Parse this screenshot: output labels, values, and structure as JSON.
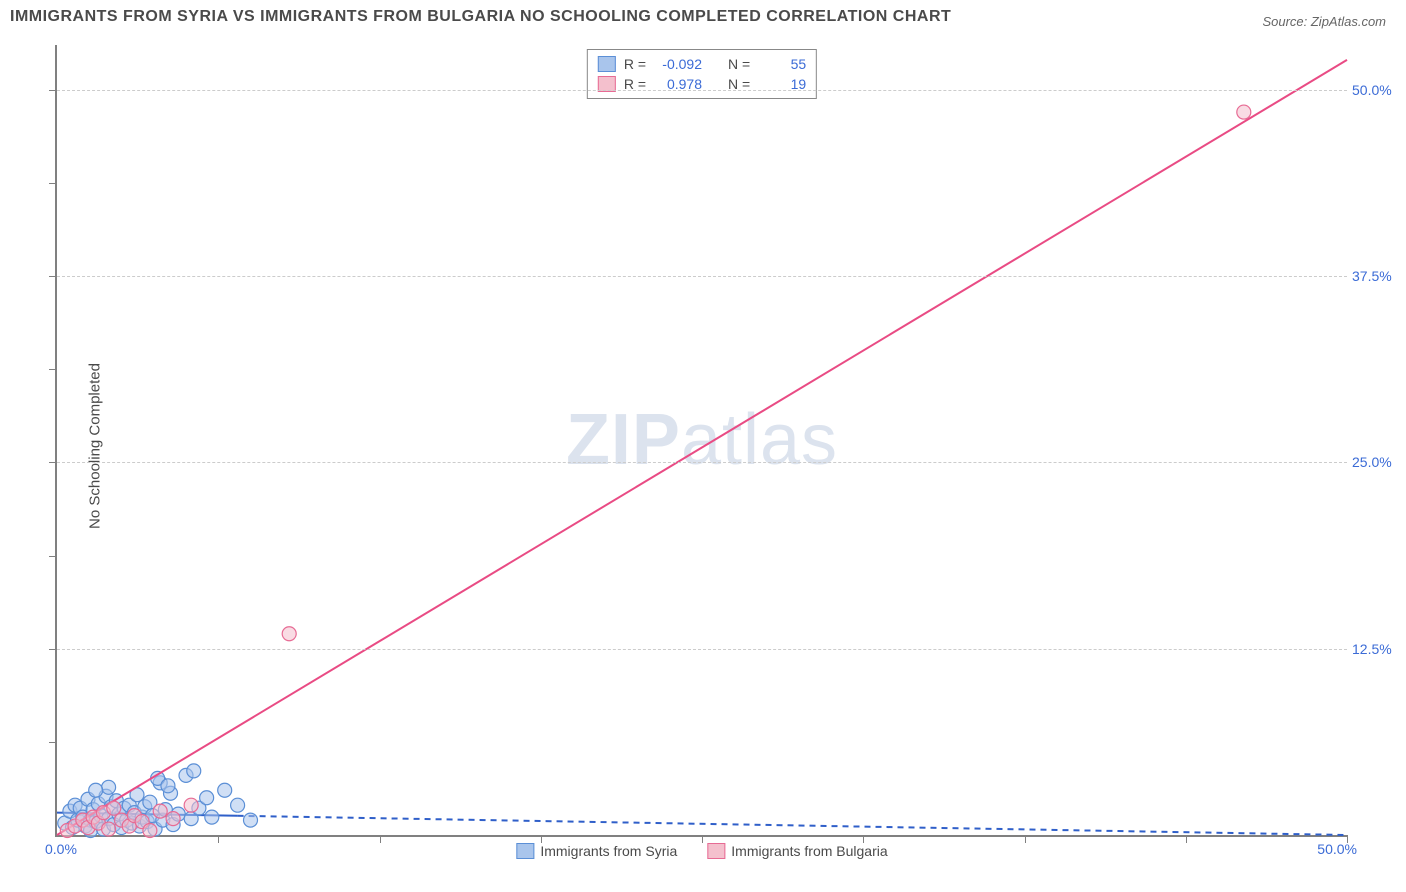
{
  "title": "IMMIGRANTS FROM SYRIA VS IMMIGRANTS FROM BULGARIA NO SCHOOLING COMPLETED CORRELATION CHART",
  "source": "Source: ZipAtlas.com",
  "ylabel": "No Schooling Completed",
  "watermark_bold": "ZIP",
  "watermark_light": "atlas",
  "chart": {
    "type": "scatter",
    "xlim": [
      0,
      50
    ],
    "ylim": [
      0,
      53
    ],
    "x_origin_label": "0.0%",
    "x_max_label": "50.0%",
    "y_ticks": [
      12.5,
      25.0,
      37.5,
      50.0
    ],
    "y_tick_labels": [
      "12.5%",
      "25.0%",
      "37.5%",
      "50.0%"
    ],
    "x_minor_ticks": [
      6.25,
      12.5,
      18.75,
      25,
      31.25,
      37.5,
      43.75,
      50
    ],
    "y_minor_ticks": [
      6.25,
      12.5,
      18.75,
      25,
      31.25,
      37.5,
      43.75,
      50
    ],
    "grid_color": "#cccccc",
    "axis_color": "#808080",
    "background": "#ffffff",
    "marker_radius": 7,
    "marker_stroke_width": 1.2,
    "series": [
      {
        "name": "Immigrants from Syria",
        "fill": "#a9c5ec",
        "stroke": "#5b8fd6",
        "fill_opacity": 0.55,
        "R": "-0.092",
        "N": "55",
        "regression": {
          "x1": 0,
          "y1": 1.5,
          "x2": 50,
          "y2": 0.0,
          "color": "#2f5fc9",
          "width": 2,
          "dash": "6,5",
          "solid_until_x": 7
        },
        "points": [
          [
            0.3,
            0.8
          ],
          [
            0.5,
            1.6
          ],
          [
            0.6,
            0.5
          ],
          [
            0.7,
            2.0
          ],
          [
            0.8,
            1.0
          ],
          [
            0.9,
            1.8
          ],
          [
            1.0,
            1.2
          ],
          [
            1.1,
            0.6
          ],
          [
            1.2,
            2.4
          ],
          [
            1.3,
            1.0
          ],
          [
            1.3,
            0.3
          ],
          [
            1.4,
            1.7
          ],
          [
            1.5,
            0.9
          ],
          [
            1.6,
            2.1
          ],
          [
            1.7,
            1.3
          ],
          [
            1.8,
            0.4
          ],
          [
            1.9,
            2.6
          ],
          [
            2.0,
            1.1
          ],
          [
            2.1,
            1.9
          ],
          [
            2.2,
            0.7
          ],
          [
            2.3,
            2.3
          ],
          [
            2.4,
            1.4
          ],
          [
            2.5,
            0.5
          ],
          [
            2.6,
            1.8
          ],
          [
            2.7,
            1.0
          ],
          [
            2.8,
            2.0
          ],
          [
            2.9,
            0.8
          ],
          [
            3.0,
            1.5
          ],
          [
            3.1,
            2.7
          ],
          [
            3.2,
            0.6
          ],
          [
            3.3,
            1.2
          ],
          [
            3.4,
            1.9
          ],
          [
            3.5,
            0.9
          ],
          [
            3.6,
            2.2
          ],
          [
            3.7,
            1.3
          ],
          [
            3.8,
            0.4
          ],
          [
            4.0,
            3.5
          ],
          [
            4.1,
            1.0
          ],
          [
            4.2,
            1.7
          ],
          [
            4.4,
            2.8
          ],
          [
            4.5,
            0.7
          ],
          [
            4.7,
            1.4
          ],
          [
            5.0,
            4.0
          ],
          [
            5.2,
            1.1
          ],
          [
            5.3,
            4.3
          ],
          [
            5.5,
            1.8
          ],
          [
            5.8,
            2.5
          ],
          [
            6.0,
            1.2
          ],
          [
            6.5,
            3.0
          ],
          [
            7.0,
            2.0
          ],
          [
            7.5,
            1.0
          ],
          [
            3.9,
            3.8
          ],
          [
            2.0,
            3.2
          ],
          [
            1.5,
            3.0
          ],
          [
            4.3,
            3.3
          ]
        ]
      },
      {
        "name": "Immigrants from Bulgaria",
        "fill": "#f4c0cd",
        "stroke": "#e76b94",
        "fill_opacity": 0.55,
        "R": "0.978",
        "N": "19",
        "regression": {
          "x1": 0,
          "y1": 0.0,
          "x2": 50,
          "y2": 52.0,
          "color": "#e94b84",
          "width": 2,
          "dash": "none",
          "solid_until_x": 50
        },
        "points": [
          [
            0.4,
            0.3
          ],
          [
            0.7,
            0.6
          ],
          [
            1.0,
            1.0
          ],
          [
            1.2,
            0.5
          ],
          [
            1.4,
            1.2
          ],
          [
            1.6,
            0.8
          ],
          [
            1.8,
            1.5
          ],
          [
            2.0,
            0.4
          ],
          [
            2.2,
            1.8
          ],
          [
            2.5,
            1.0
          ],
          [
            2.8,
            0.6
          ],
          [
            3.0,
            1.3
          ],
          [
            3.3,
            0.9
          ],
          [
            3.6,
            0.3
          ],
          [
            4.0,
            1.6
          ],
          [
            4.5,
            1.1
          ],
          [
            5.2,
            2.0
          ],
          [
            9.0,
            13.5
          ],
          [
            46.0,
            48.5
          ]
        ]
      }
    ]
  },
  "legend": {
    "series1_label": "Immigrants from Syria",
    "series2_label": "Immigrants from Bulgaria"
  },
  "stat_labels": {
    "R": "R =",
    "N": "N ="
  }
}
